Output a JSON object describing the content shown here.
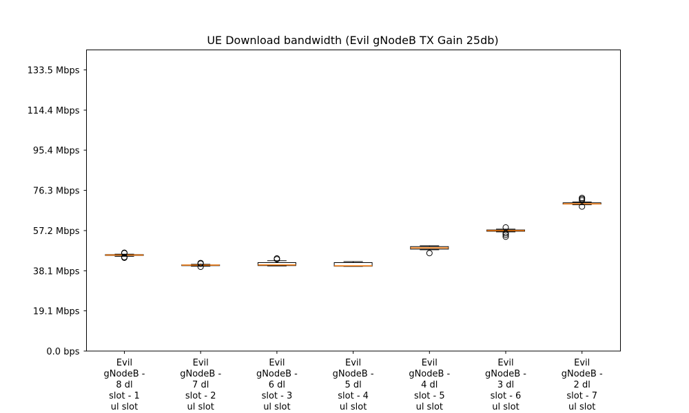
{
  "chart_data": {
    "type": "box",
    "title": "UE Download bandwidth (Evil gNodeB TX Gain 25db)",
    "xlabel": "",
    "ylabel": "",
    "ylim": [
      0,
      143
    ],
    "grid": false,
    "y_ticks": [
      0,
      19.1,
      38.1,
      57.2,
      76.3,
      95.4,
      114.4,
      133.5
    ],
    "y_tick_labels": [
      "0.0 bps",
      "19.1 Mbps",
      "38.1 Mbps",
      "57.2 Mbps",
      "76.3 Mbps",
      "95.4 Mbps",
      "114.4 Mbps",
      "133.5 Mbps"
    ],
    "categories": [
      [
        "Evil",
        "gNodeB -",
        "8 dl",
        "slot - 1",
        "ul slot"
      ],
      [
        "Evil",
        "gNodeB -",
        "7 dl",
        "slot - 2",
        "ul slot"
      ],
      [
        "Evil",
        "gNodeB -",
        "6 dl",
        "slot - 3",
        "ul slot"
      ],
      [
        "Evil",
        "gNodeB -",
        "5 dl",
        "slot - 4",
        "ul slot"
      ],
      [
        "Evil",
        "gNodeB -",
        "4 dl",
        "slot - 5",
        "ul slot"
      ],
      [
        "Evil",
        "gNodeB -",
        "3 dl",
        "slot - 6",
        "ul slot"
      ],
      [
        "Evil",
        "gNodeB -",
        "2 dl",
        "slot - 7",
        "ul slot"
      ]
    ],
    "boxes": [
      {
        "whislo": 45.0,
        "q1": 45.4,
        "med": 45.6,
        "q3": 45.8,
        "whishi": 46.0,
        "fliers": [
          44.3,
          44.6,
          46.5,
          46.7
        ]
      },
      {
        "whislo": 40.3,
        "q1": 40.6,
        "med": 40.8,
        "q3": 40.9,
        "whishi": 41.2,
        "fliers": [
          40.0,
          41.5,
          41.8
        ]
      },
      {
        "whislo": 40.4,
        "q1": 40.6,
        "med": 40.9,
        "q3": 42.0,
        "whishi": 42.9,
        "fliers": [
          43.6,
          44.0
        ]
      },
      {
        "whislo": 40.2,
        "q1": 40.3,
        "med": 40.5,
        "q3": 42.0,
        "whishi": 42.5,
        "fliers": []
      },
      {
        "whislo": 48.1,
        "q1": 48.4,
        "med": 49.0,
        "q3": 49.6,
        "whishi": 50.0,
        "fliers": [
          46.5
        ]
      },
      {
        "whislo": 56.6,
        "q1": 56.9,
        "med": 57.2,
        "q3": 57.5,
        "whishi": 57.9,
        "fliers": [
          54.3,
          55.2,
          56.0,
          58.7
        ]
      },
      {
        "whislo": 69.5,
        "q1": 69.8,
        "med": 69.9,
        "q3": 70.4,
        "whishi": 70.8,
        "fliers": [
          68.6,
          71.6,
          72.2,
          72.7
        ]
      }
    ],
    "colors": {
      "box": "#000000",
      "median": "#ff7f0e",
      "axis": "#000000",
      "background": "#ffffff"
    }
  }
}
